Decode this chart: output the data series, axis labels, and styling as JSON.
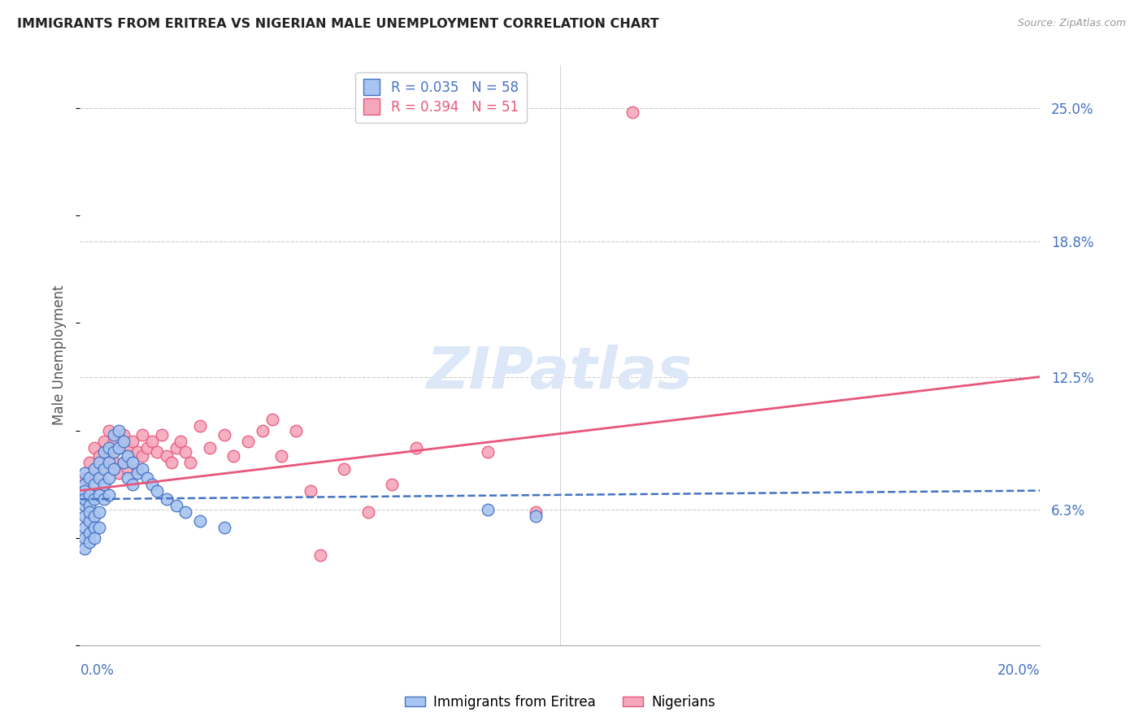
{
  "title": "IMMIGRANTS FROM ERITREA VS NIGERIAN MALE UNEMPLOYMENT CORRELATION CHART",
  "source": "Source: ZipAtlas.com",
  "ylabel": "Male Unemployment",
  "right_yticks": [
    "25.0%",
    "18.8%",
    "12.5%",
    "6.3%"
  ],
  "right_ytick_vals": [
    0.25,
    0.188,
    0.125,
    0.063
  ],
  "eritrea_color": "#a8c4f0",
  "nigerian_color": "#f5a8bc",
  "eritrea_line_color": "#4472c4",
  "nigerian_line_color": "#e8567a",
  "xmin": 0.0,
  "xmax": 0.2,
  "ymin": 0.0,
  "ymax": 0.27,
  "eritrea_x": [
    0.001,
    0.001,
    0.001,
    0.001,
    0.001,
    0.001,
    0.001,
    0.001,
    0.001,
    0.002,
    0.002,
    0.002,
    0.002,
    0.002,
    0.002,
    0.002,
    0.003,
    0.003,
    0.003,
    0.003,
    0.003,
    0.003,
    0.004,
    0.004,
    0.004,
    0.004,
    0.004,
    0.005,
    0.005,
    0.005,
    0.005,
    0.006,
    0.006,
    0.006,
    0.006,
    0.007,
    0.007,
    0.007,
    0.008,
    0.008,
    0.009,
    0.009,
    0.01,
    0.01,
    0.011,
    0.011,
    0.012,
    0.013,
    0.014,
    0.015,
    0.016,
    0.018,
    0.02,
    0.022,
    0.025,
    0.03,
    0.085,
    0.095
  ],
  "eritrea_y": [
    0.075,
    0.072,
    0.065,
    0.06,
    0.055,
    0.068,
    0.08,
    0.05,
    0.045,
    0.078,
    0.07,
    0.065,
    0.058,
    0.052,
    0.062,
    0.048,
    0.082,
    0.075,
    0.068,
    0.06,
    0.055,
    0.05,
    0.085,
    0.078,
    0.07,
    0.062,
    0.055,
    0.09,
    0.082,
    0.075,
    0.068,
    0.092,
    0.085,
    0.078,
    0.07,
    0.098,
    0.09,
    0.082,
    0.1,
    0.092,
    0.095,
    0.085,
    0.088,
    0.078,
    0.085,
    0.075,
    0.08,
    0.082,
    0.078,
    0.075,
    0.072,
    0.068,
    0.065,
    0.062,
    0.058,
    0.055,
    0.063,
    0.06
  ],
  "nigerian_x": [
    0.001,
    0.002,
    0.003,
    0.003,
    0.004,
    0.004,
    0.005,
    0.005,
    0.006,
    0.006,
    0.007,
    0.007,
    0.008,
    0.008,
    0.009,
    0.009,
    0.01,
    0.01,
    0.011,
    0.012,
    0.012,
    0.013,
    0.013,
    0.014,
    0.015,
    0.016,
    0.017,
    0.018,
    0.019,
    0.02,
    0.021,
    0.022,
    0.023,
    0.025,
    0.027,
    0.03,
    0.032,
    0.035,
    0.038,
    0.04,
    0.042,
    0.045,
    0.048,
    0.05,
    0.055,
    0.06,
    0.065,
    0.07,
    0.085,
    0.095,
    0.115
  ],
  "nigerian_y": [
    0.078,
    0.085,
    0.08,
    0.092,
    0.088,
    0.078,
    0.095,
    0.082,
    0.1,
    0.088,
    0.095,
    0.085,
    0.092,
    0.08,
    0.098,
    0.085,
    0.092,
    0.082,
    0.095,
    0.09,
    0.082,
    0.098,
    0.088,
    0.092,
    0.095,
    0.09,
    0.098,
    0.088,
    0.085,
    0.092,
    0.095,
    0.09,
    0.085,
    0.102,
    0.092,
    0.098,
    0.088,
    0.095,
    0.1,
    0.105,
    0.088,
    0.1,
    0.072,
    0.042,
    0.082,
    0.062,
    0.075,
    0.092,
    0.09,
    0.062,
    0.248
  ],
  "eritrea_trend_x": [
    0.0,
    0.2
  ],
  "eritrea_trend_y": [
    0.068,
    0.072
  ],
  "nigerian_trend_x": [
    0.0,
    0.2
  ],
  "nigerian_trend_y": [
    0.072,
    0.125
  ]
}
